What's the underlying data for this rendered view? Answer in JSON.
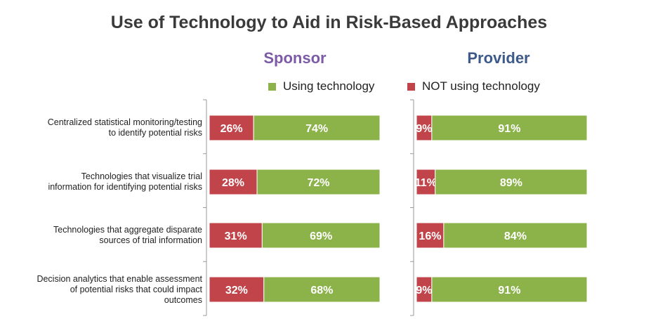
{
  "chart_data": {
    "type": "bar",
    "title": "Use of Technology to Aid in Risk-Based Approaches",
    "legend": [
      {
        "name": "Using technology",
        "color": "#8cb24a"
      },
      {
        "name": "NOT using technology",
        "color": "#c0444a"
      }
    ],
    "categories": [
      [
        "Centralized statistical monitoring/testing",
        "to identify potential risks"
      ],
      [
        "Technologies that visualize trial",
        "information for identifying potential risks"
      ],
      [
        "Technologies that aggregate disparate",
        "sources of trial information"
      ],
      [
        "Decision analytics that enable assessment",
        "of potential risks that could impact",
        "outcomes"
      ]
    ],
    "panels": [
      {
        "title": "Sponsor",
        "series": [
          {
            "name": "NOT using technology",
            "values": [
              26,
              28,
              31,
              32
            ],
            "labels": [
              "26%",
              "28%",
              "31%",
              "32%"
            ]
          },
          {
            "name": "Using technology",
            "values": [
              74,
              72,
              69,
              68
            ],
            "labels": [
              "74%",
              "72%",
              "69%",
              "68%"
            ]
          }
        ]
      },
      {
        "title": "Provider",
        "series": [
          {
            "name": "NOT using technology",
            "values": [
              9,
              11,
              16,
              9
            ],
            "labels": [
              "9%",
              "11%",
              "16%",
              "9%"
            ]
          },
          {
            "name": "Using technology",
            "values": [
              91,
              89,
              84,
              91
            ],
            "labels": [
              "91%",
              "89%",
              "84%",
              "91%"
            ]
          }
        ]
      }
    ],
    "xlim": [
      0,
      100
    ]
  },
  "colors": {
    "using": "#8cb24a",
    "not_using": "#c0444a",
    "sponsor_title": "#7b5aa6",
    "provider_title": "#3d5a8a"
  }
}
